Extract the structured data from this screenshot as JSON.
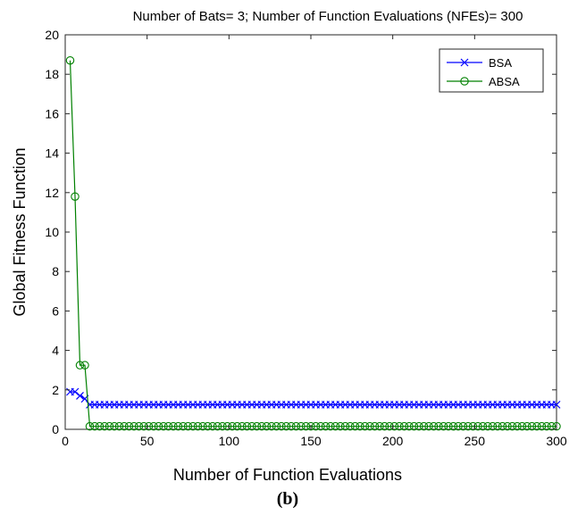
{
  "chart_data": {
    "type": "line",
    "title": "Number of Bats= 3; Number of Function Evaluations (NFEs)= 300",
    "xlabel": "Number of Function Evaluations",
    "ylabel": "Global Fitness Function",
    "caption": "(b)",
    "xlim": [
      0,
      300
    ],
    "ylim": [
      0,
      20
    ],
    "xticks": [
      0,
      50,
      100,
      150,
      200,
      250,
      300
    ],
    "yticks": [
      0,
      2,
      4,
      6,
      8,
      10,
      12,
      14,
      16,
      18,
      20
    ],
    "grid": false,
    "legend_position": "top-right",
    "series": [
      {
        "name": "BSA",
        "color": "#0000ff",
        "marker": "x",
        "points": [
          [
            3,
            1.9
          ],
          [
            6,
            1.9
          ],
          [
            9,
            1.7
          ],
          [
            12,
            1.55
          ],
          [
            15,
            1.25
          ]
        ],
        "plateau": {
          "x_start": 18,
          "x_end": 300,
          "step": 3,
          "y": 1.25
        }
      },
      {
        "name": "ABSA",
        "color": "#008000",
        "marker": "o",
        "points": [
          [
            3,
            18.7
          ],
          [
            6,
            11.8
          ],
          [
            9,
            3.25
          ],
          [
            12,
            3.25
          ],
          [
            15,
            0.15
          ]
        ],
        "plateau": {
          "x_start": 18,
          "x_end": 300,
          "step": 3,
          "y": 0.15
        }
      }
    ]
  }
}
